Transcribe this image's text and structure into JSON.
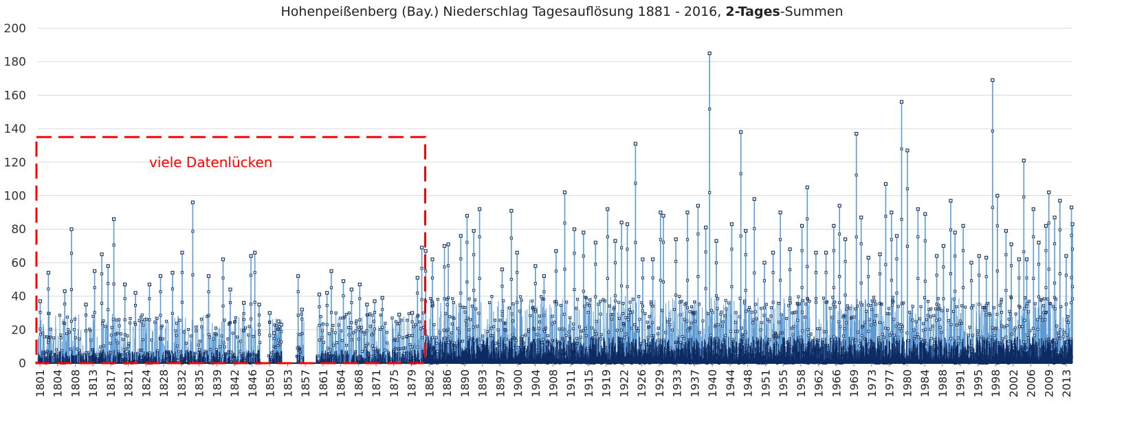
{
  "chart_data": {
    "type": "line",
    "title": {
      "prefix": "Hohenpeißenberg (Bay.) Niederschlag Tagesauflösung 1881 - 2016, ",
      "bold1": "2-Tages",
      "sep": "-",
      "suffix": "Summen"
    },
    "xlabel": "",
    "ylabel": "",
    "ylim": [
      0,
      200
    ],
    "y_ticks": [
      "0",
      "20",
      "40",
      "60",
      "80",
      "100",
      "120",
      "140",
      "160",
      "180",
      "200"
    ],
    "x_range": [
      1801,
      2016
    ],
    "x_ticks": [
      "1801",
      "1804",
      "1808",
      "1813",
      "1817",
      "1821",
      "1824",
      "1828",
      "1832",
      "1835",
      "1839",
      "1842",
      "1846",
      "1850",
      "1853",
      "1857",
      "1861",
      "1864",
      "1868",
      "1871",
      "1875",
      "1879",
      "1882",
      "1886",
      "1890",
      "1893",
      "1897",
      "1900",
      "1904",
      "1908",
      "1911",
      "1915",
      "1919",
      "1922",
      "1926",
      "1929",
      "1933",
      "1937",
      "1940",
      "1944",
      "1948",
      "1951",
      "1955",
      "1958",
      "1962",
      "1966",
      "1969",
      "1973",
      "1977",
      "1980",
      "1984",
      "1988",
      "1991",
      "1995",
      "1998",
      "2002",
      "2006",
      "2009",
      "2013"
    ],
    "grid": true,
    "series_color": "#5b9bd5",
    "marker_edge_color": "#1f3864",
    "baseline_color": "#0d2a63",
    "annotation": {
      "text": "viele Datenlücken",
      "color": "#ff0000",
      "x_from": 1801,
      "x_to": 1881.5,
      "y_from": 0,
      "y_to": 135
    },
    "peaks": [
      {
        "x": 1801.5,
        "y": 37
      },
      {
        "x": 1803.2,
        "y": 54
      },
      {
        "x": 1806.6,
        "y": 43
      },
      {
        "x": 1808.0,
        "y": 80
      },
      {
        "x": 1811.0,
        "y": 35
      },
      {
        "x": 1812.8,
        "y": 55
      },
      {
        "x": 1814.3,
        "y": 65
      },
      {
        "x": 1815.6,
        "y": 58
      },
      {
        "x": 1816.8,
        "y": 86
      },
      {
        "x": 1819.1,
        "y": 47
      },
      {
        "x": 1821.3,
        "y": 42
      },
      {
        "x": 1824.2,
        "y": 47
      },
      {
        "x": 1826.5,
        "y": 52
      },
      {
        "x": 1829.0,
        "y": 54
      },
      {
        "x": 1831.0,
        "y": 66
      },
      {
        "x": 1833.2,
        "y": 96
      },
      {
        "x": 1836.5,
        "y": 52
      },
      {
        "x": 1839.5,
        "y": 62
      },
      {
        "x": 1841.0,
        "y": 44
      },
      {
        "x": 1843.8,
        "y": 36
      },
      {
        "x": 1845.3,
        "y": 64
      },
      {
        "x": 1846.1,
        "y": 66
      },
      {
        "x": 1847.0,
        "y": 35
      },
      {
        "x": 1849.2,
        "y": 30
      },
      {
        "x": 1850.1,
        "y": 18
      },
      {
        "x": 1851.0,
        "y": 25
      },
      {
        "x": 1851.6,
        "y": 23
      },
      {
        "x": 1855.1,
        "y": 52
      },
      {
        "x": 1855.9,
        "y": 32
      },
      {
        "x": 1859.5,
        "y": 41
      },
      {
        "x": 1861.1,
        "y": 42
      },
      {
        "x": 1862.0,
        "y": 55
      },
      {
        "x": 1864.5,
        "y": 49
      },
      {
        "x": 1866.2,
        "y": 44
      },
      {
        "x": 1867.9,
        "y": 47
      },
      {
        "x": 1869.4,
        "y": 35
      },
      {
        "x": 1871.0,
        "y": 37
      },
      {
        "x": 1872.6,
        "y": 39
      },
      {
        "x": 1876.1,
        "y": 29
      },
      {
        "x": 1878.8,
        "y": 30
      },
      {
        "x": 1879.9,
        "y": 51
      },
      {
        "x": 1880.8,
        "y": 69
      },
      {
        "x": 1881.6,
        "y": 67
      },
      {
        "x": 1883.0,
        "y": 62
      },
      {
        "x": 1885.5,
        "y": 70
      },
      {
        "x": 1886.3,
        "y": 71
      },
      {
        "x": 1888.9,
        "y": 76
      },
      {
        "x": 1890.2,
        "y": 88
      },
      {
        "x": 1891.6,
        "y": 79
      },
      {
        "x": 1892.8,
        "y": 92
      },
      {
        "x": 1897.5,
        "y": 56
      },
      {
        "x": 1899.4,
        "y": 91
      },
      {
        "x": 1900.6,
        "y": 66
      },
      {
        "x": 1904.4,
        "y": 58
      },
      {
        "x": 1906.2,
        "y": 52
      },
      {
        "x": 1908.7,
        "y": 67
      },
      {
        "x": 1910.5,
        "y": 102
      },
      {
        "x": 1912.5,
        "y": 80
      },
      {
        "x": 1914.4,
        "y": 78
      },
      {
        "x": 1916.9,
        "y": 72
      },
      {
        "x": 1919.4,
        "y": 92
      },
      {
        "x": 1921.0,
        "y": 73
      },
      {
        "x": 1922.3,
        "y": 84
      },
      {
        "x": 1923.5,
        "y": 83
      },
      {
        "x": 1925.2,
        "y": 131
      },
      {
        "x": 1926.7,
        "y": 62
      },
      {
        "x": 1928.8,
        "y": 62
      },
      {
        "x": 1930.4,
        "y": 90
      },
      {
        "x": 1931.0,
        "y": 88
      },
      {
        "x": 1933.6,
        "y": 74
      },
      {
        "x": 1936.0,
        "y": 90
      },
      {
        "x": 1938.2,
        "y": 94
      },
      {
        "x": 1939.8,
        "y": 81
      },
      {
        "x": 1940.6,
        "y": 185
      },
      {
        "x": 1942.0,
        "y": 73
      },
      {
        "x": 1945.2,
        "y": 83
      },
      {
        "x": 1947.1,
        "y": 138
      },
      {
        "x": 1948.1,
        "y": 79
      },
      {
        "x": 1949.9,
        "y": 98
      },
      {
        "x": 1952.0,
        "y": 60
      },
      {
        "x": 1953.8,
        "y": 66
      },
      {
        "x": 1955.3,
        "y": 90
      },
      {
        "x": 1957.3,
        "y": 68
      },
      {
        "x": 1959.8,
        "y": 82
      },
      {
        "x": 1960.9,
        "y": 105
      },
      {
        "x": 1962.7,
        "y": 66
      },
      {
        "x": 1964.8,
        "y": 66
      },
      {
        "x": 1966.4,
        "y": 82
      },
      {
        "x": 1967.6,
        "y": 94
      },
      {
        "x": 1968.8,
        "y": 74
      },
      {
        "x": 1971.1,
        "y": 137
      },
      {
        "x": 1972.1,
        "y": 87
      },
      {
        "x": 1973.6,
        "y": 63
      },
      {
        "x": 1976.0,
        "y": 65
      },
      {
        "x": 1977.2,
        "y": 107
      },
      {
        "x": 1978.4,
        "y": 90
      },
      {
        "x": 1979.5,
        "y": 76
      },
      {
        "x": 1980.5,
        "y": 156
      },
      {
        "x": 1981.7,
        "y": 127
      },
      {
        "x": 1983.9,
        "y": 92
      },
      {
        "x": 1985.4,
        "y": 89
      },
      {
        "x": 1987.8,
        "y": 64
      },
      {
        "x": 1989.2,
        "y": 70
      },
      {
        "x": 1990.7,
        "y": 97
      },
      {
        "x": 1991.6,
        "y": 78
      },
      {
        "x": 1993.3,
        "y": 82
      },
      {
        "x": 1995.0,
        "y": 60
      },
      {
        "x": 1996.6,
        "y": 64
      },
      {
        "x": 1998.1,
        "y": 63
      },
      {
        "x": 1999.4,
        "y": 169
      },
      {
        "x": 2000.4,
        "y": 100
      },
      {
        "x": 2002.2,
        "y": 79
      },
      {
        "x": 2003.3,
        "y": 71
      },
      {
        "x": 2004.9,
        "y": 62
      },
      {
        "x": 2005.9,
        "y": 121
      },
      {
        "x": 2006.5,
        "y": 62
      },
      {
        "x": 2007.9,
        "y": 92
      },
      {
        "x": 2009.0,
        "y": 72
      },
      {
        "x": 2010.5,
        "y": 82
      },
      {
        "x": 2011.1,
        "y": 102
      },
      {
        "x": 2012.3,
        "y": 87
      },
      {
        "x": 2013.4,
        "y": 97
      },
      {
        "x": 2014.7,
        "y": 64
      },
      {
        "x": 2015.8,
        "y": 93
      },
      {
        "x": 2016.0,
        "y": 83
      }
    ]
  }
}
